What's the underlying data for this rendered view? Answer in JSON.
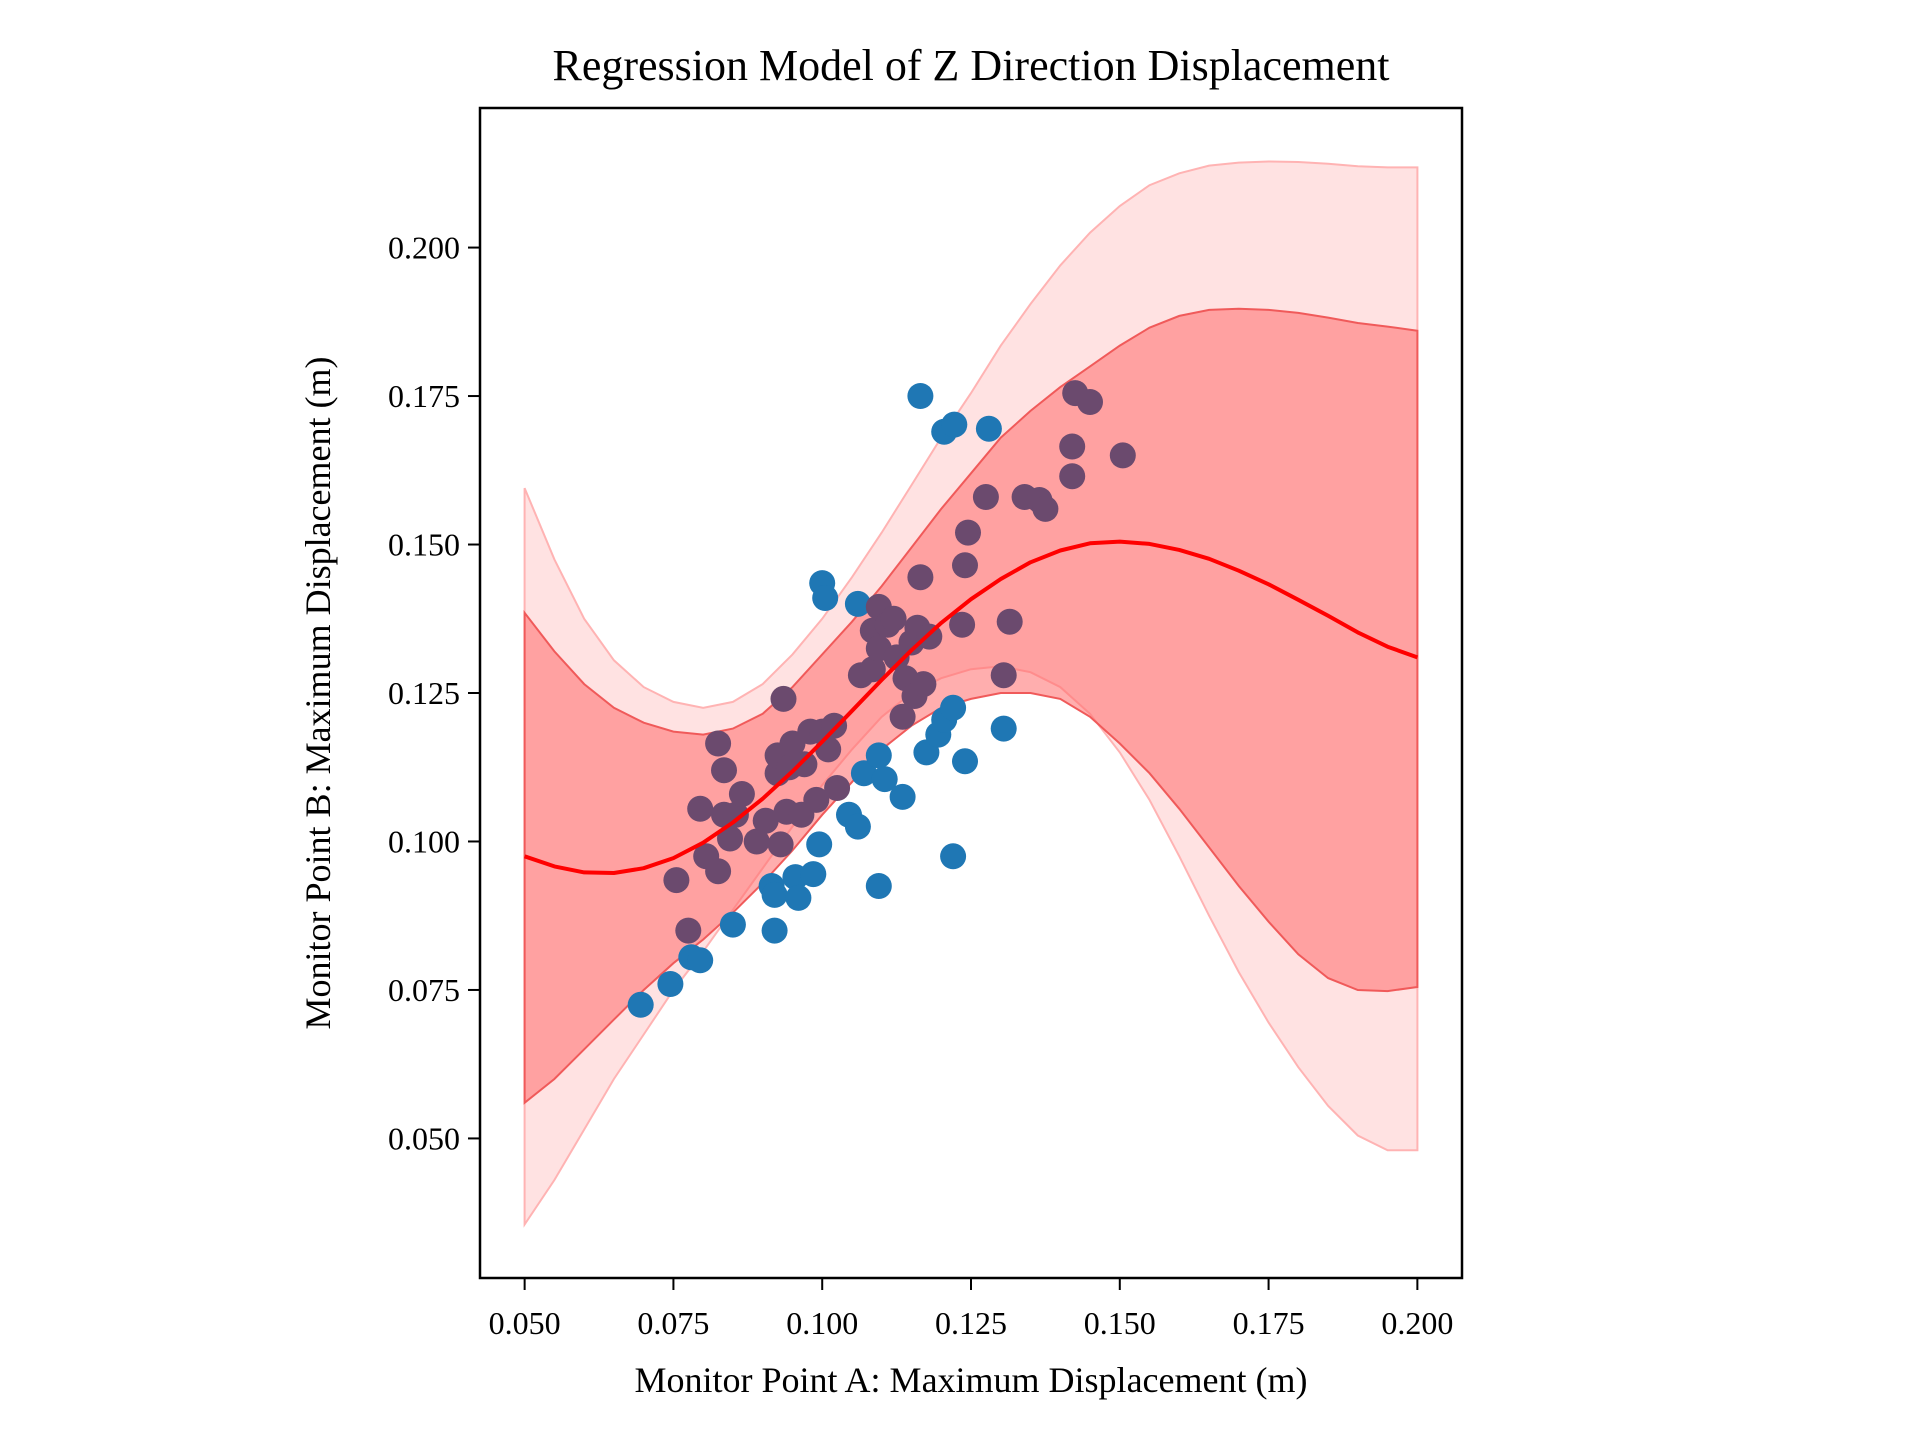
{
  "chart_data": {
    "type": "scatter",
    "title": "Regression Model of Z Direction Displacement",
    "xlabel": "Monitor Point A: Maximum Displacement (m)",
    "ylabel": "Monitor Point B: Maximum Displacement (m)",
    "xlim": [
      0.0425,
      0.2075
    ],
    "ylim": [
      0.0265,
      0.2235
    ],
    "x_ticks": [
      "0.050",
      "0.075",
      "0.100",
      "0.125",
      "0.150",
      "0.175",
      "0.200"
    ],
    "y_ticks": [
      "0.050",
      "0.075",
      "0.100",
      "0.125",
      "0.150",
      "0.175",
      "0.200"
    ],
    "grid": false,
    "colors": {
      "points": "#1f77b4",
      "points_overlap": "#6b4a6e",
      "regression_line": "#ff0000",
      "band_inner": "#ff6b6b",
      "band_outer": "#ffb3b3"
    },
    "regression": {
      "x": [
        0.05,
        0.055,
        0.06,
        0.065,
        0.07,
        0.075,
        0.08,
        0.085,
        0.09,
        0.095,
        0.1,
        0.105,
        0.11,
        0.115,
        0.12,
        0.125,
        0.13,
        0.135,
        0.14,
        0.145,
        0.15,
        0.155,
        0.16,
        0.165,
        0.17,
        0.175,
        0.18,
        0.185,
        0.19,
        0.195,
        0.2
      ],
      "mean": [
        0.0975,
        0.0958,
        0.0948,
        0.0947,
        0.0955,
        0.0972,
        0.0998,
        0.1032,
        0.1072,
        0.1118,
        0.1168,
        0.122,
        0.1272,
        0.1322,
        0.1368,
        0.1408,
        0.1442,
        0.147,
        0.149,
        0.1502,
        0.1505,
        0.1501,
        0.1491,
        0.1476,
        0.1456,
        0.1433,
        0.1407,
        0.138,
        0.1352,
        0.1328,
        0.131
      ],
      "inner_lower": [
        0.056,
        0.06,
        0.065,
        0.07,
        0.075,
        0.0795,
        0.0835,
        0.088,
        0.093,
        0.0985,
        0.1045,
        0.11,
        0.1155,
        0.1195,
        0.1225,
        0.124,
        0.125,
        0.125,
        0.124,
        0.121,
        0.1165,
        0.1115,
        0.1055,
        0.099,
        0.0925,
        0.0865,
        0.081,
        0.077,
        0.075,
        0.0748,
        0.0755
      ],
      "inner_upper": [
        0.1385,
        0.132,
        0.1265,
        0.1225,
        0.12,
        0.1185,
        0.118,
        0.119,
        0.1215,
        0.126,
        0.1315,
        0.137,
        0.143,
        0.1495,
        0.156,
        0.162,
        0.168,
        0.1725,
        0.1765,
        0.18,
        0.1835,
        0.1865,
        0.1885,
        0.1895,
        0.1897,
        0.1895,
        0.189,
        0.1882,
        0.1873,
        0.1867,
        0.186
      ],
      "outer_lower": [
        0.0355,
        0.043,
        0.0515,
        0.06,
        0.0675,
        0.075,
        0.0815,
        0.0885,
        0.0955,
        0.1025,
        0.1095,
        0.1155,
        0.121,
        0.125,
        0.1275,
        0.129,
        0.1295,
        0.1285,
        0.126,
        0.1215,
        0.115,
        0.107,
        0.0975,
        0.0875,
        0.078,
        0.0695,
        0.062,
        0.0555,
        0.0505,
        0.048,
        0.048
      ],
      "outer_upper": [
        0.1595,
        0.1475,
        0.1375,
        0.1305,
        0.126,
        0.1235,
        0.1225,
        0.1235,
        0.1265,
        0.1315,
        0.1375,
        0.1445,
        0.152,
        0.16,
        0.168,
        0.1755,
        0.1835,
        0.1905,
        0.197,
        0.2025,
        0.207,
        0.2105,
        0.2125,
        0.2138,
        0.2143,
        0.2145,
        0.2144,
        0.2141,
        0.2137,
        0.2135,
        0.2135
      ]
    },
    "points": [
      {
        "x": 0.0695,
        "y": 0.0725
      },
      {
        "x": 0.0745,
        "y": 0.076
      },
      {
        "x": 0.0775,
        "y": 0.085
      },
      {
        "x": 0.078,
        "y": 0.0805
      },
      {
        "x": 0.0795,
        "y": 0.08
      },
      {
        "x": 0.0755,
        "y": 0.0935
      },
      {
        "x": 0.0795,
        "y": 0.1055
      },
      {
        "x": 0.0805,
        "y": 0.0975
      },
      {
        "x": 0.0825,
        "y": 0.095
      },
      {
        "x": 0.0835,
        "y": 0.1045
      },
      {
        "x": 0.0835,
        "y": 0.112
      },
      {
        "x": 0.0825,
        "y": 0.1165
      },
      {
        "x": 0.0845,
        "y": 0.1005
      },
      {
        "x": 0.085,
        "y": 0.086
      },
      {
        "x": 0.0855,
        "y": 0.1045
      },
      {
        "x": 0.0865,
        "y": 0.108
      },
      {
        "x": 0.089,
        "y": 0.1
      },
      {
        "x": 0.0905,
        "y": 0.1035
      },
      {
        "x": 0.0915,
        "y": 0.0925
      },
      {
        "x": 0.092,
        "y": 0.085
      },
      {
        "x": 0.092,
        "y": 0.091
      },
      {
        "x": 0.0925,
        "y": 0.1115
      },
      {
        "x": 0.0925,
        "y": 0.1145
      },
      {
        "x": 0.093,
        "y": 0.0995
      },
      {
        "x": 0.0935,
        "y": 0.124
      },
      {
        "x": 0.094,
        "y": 0.105
      },
      {
        "x": 0.0945,
        "y": 0.1125
      },
      {
        "x": 0.095,
        "y": 0.1165
      },
      {
        "x": 0.0955,
        "y": 0.094
      },
      {
        "x": 0.096,
        "y": 0.0905
      },
      {
        "x": 0.0965,
        "y": 0.1045
      },
      {
        "x": 0.097,
        "y": 0.113
      },
      {
        "x": 0.098,
        "y": 0.1185
      },
      {
        "x": 0.0985,
        "y": 0.0945
      },
      {
        "x": 0.099,
        "y": 0.107
      },
      {
        "x": 0.0995,
        "y": 0.0995
      },
      {
        "x": 0.1,
        "y": 0.1185
      },
      {
        "x": 0.1,
        "y": 0.1435
      },
      {
        "x": 0.1005,
        "y": 0.141
      },
      {
        "x": 0.101,
        "y": 0.1155
      },
      {
        "x": 0.102,
        "y": 0.1195
      },
      {
        "x": 0.1025,
        "y": 0.109
      },
      {
        "x": 0.1045,
        "y": 0.1045
      },
      {
        "x": 0.106,
        "y": 0.1025
      },
      {
        "x": 0.106,
        "y": 0.14
      },
      {
        "x": 0.1065,
        "y": 0.128
      },
      {
        "x": 0.107,
        "y": 0.1115
      },
      {
        "x": 0.1085,
        "y": 0.129
      },
      {
        "x": 0.1085,
        "y": 0.1355
      },
      {
        "x": 0.1095,
        "y": 0.1395
      },
      {
        "x": 0.1095,
        "y": 0.1325
      },
      {
        "x": 0.1095,
        "y": 0.1145
      },
      {
        "x": 0.1095,
        "y": 0.0925
      },
      {
        "x": 0.1105,
        "y": 0.1105
      },
      {
        "x": 0.111,
        "y": 0.1365
      },
      {
        "x": 0.112,
        "y": 0.1375
      },
      {
        "x": 0.1125,
        "y": 0.131
      },
      {
        "x": 0.1135,
        "y": 0.1075
      },
      {
        "x": 0.1135,
        "y": 0.121
      },
      {
        "x": 0.114,
        "y": 0.1275
      },
      {
        "x": 0.115,
        "y": 0.1335
      },
      {
        "x": 0.1155,
        "y": 0.1245
      },
      {
        "x": 0.116,
        "y": 0.136
      },
      {
        "x": 0.1165,
        "y": 0.1445
      },
      {
        "x": 0.1165,
        "y": 0.175
      },
      {
        "x": 0.117,
        "y": 0.1265
      },
      {
        "x": 0.1175,
        "y": 0.115
      },
      {
        "x": 0.118,
        "y": 0.1345
      },
      {
        "x": 0.1195,
        "y": 0.118
      },
      {
        "x": 0.1205,
        "y": 0.1205
      },
      {
        "x": 0.1205,
        "y": 0.169
      },
      {
        "x": 0.122,
        "y": 0.0975
      },
      {
        "x": 0.122,
        "y": 0.1225
      },
      {
        "x": 0.1222,
        "y": 0.1702
      },
      {
        "x": 0.1235,
        "y": 0.1365
      },
      {
        "x": 0.124,
        "y": 0.1465
      },
      {
        "x": 0.124,
        "y": 0.1135
      },
      {
        "x": 0.1245,
        "y": 0.152
      },
      {
        "x": 0.1275,
        "y": 0.158
      },
      {
        "x": 0.128,
        "y": 0.1695
      },
      {
        "x": 0.1305,
        "y": 0.128
      },
      {
        "x": 0.1305,
        "y": 0.119
      },
      {
        "x": 0.1315,
        "y": 0.137
      },
      {
        "x": 0.134,
        "y": 0.158
      },
      {
        "x": 0.1365,
        "y": 0.1575
      },
      {
        "x": 0.1375,
        "y": 0.156
      },
      {
        "x": 0.142,
        "y": 0.1665
      },
      {
        "x": 0.142,
        "y": 0.1615
      },
      {
        "x": 0.1425,
        "y": 0.1755
      },
      {
        "x": 0.145,
        "y": 0.174
      },
      {
        "x": 0.1505,
        "y": 0.165
      }
    ]
  }
}
